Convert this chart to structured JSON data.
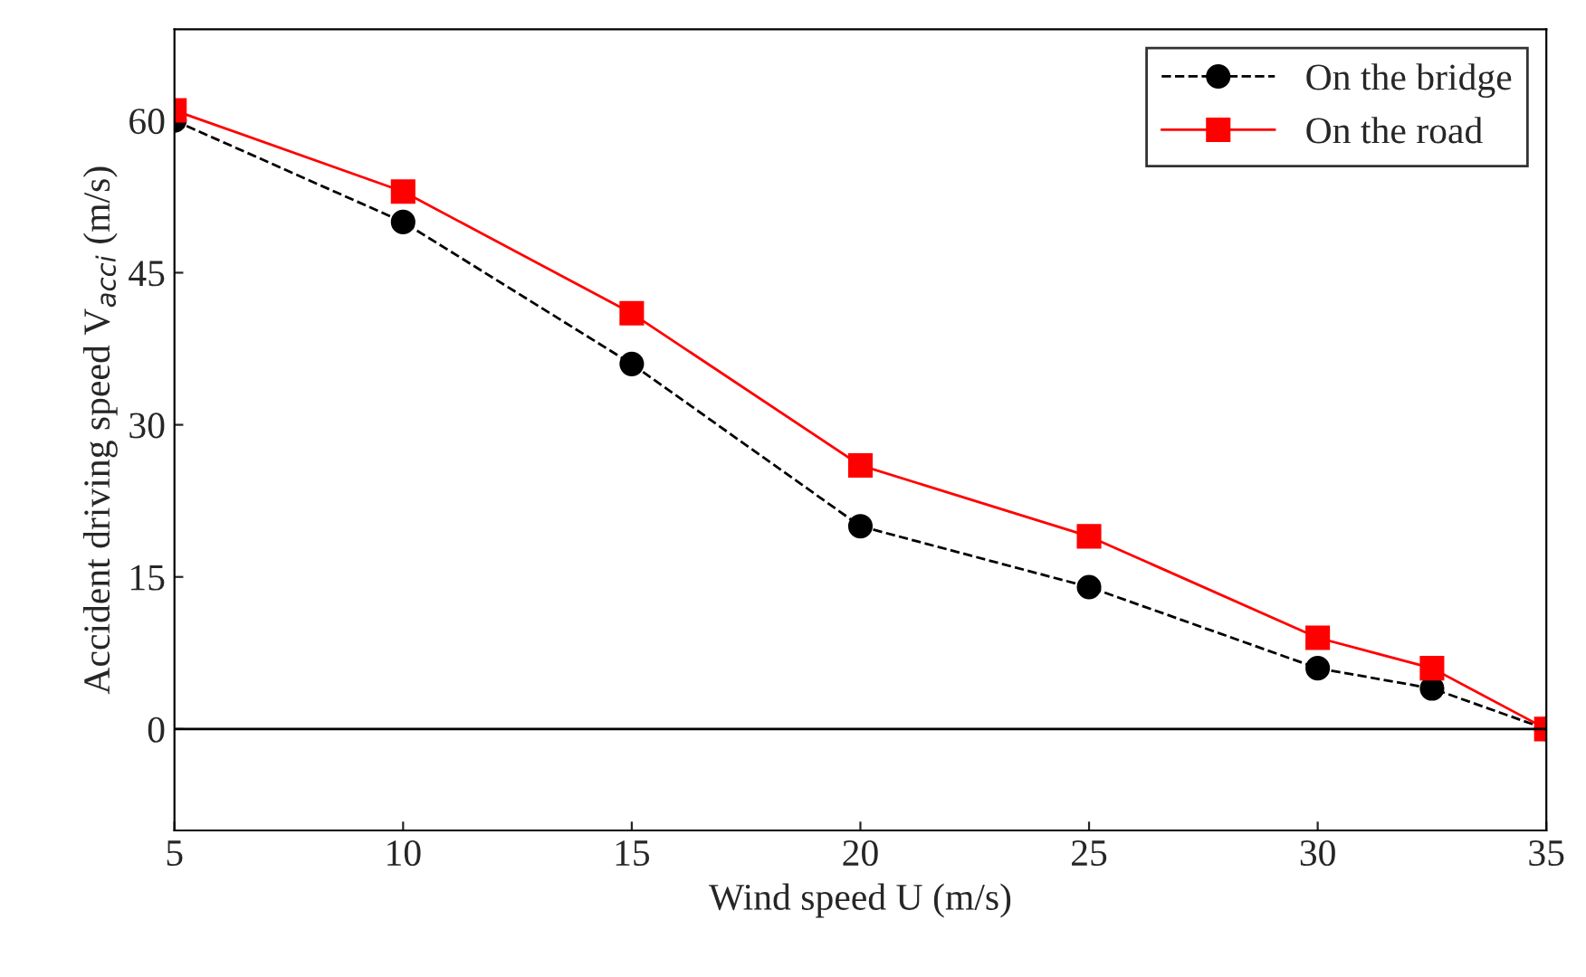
{
  "chart_data": {
    "type": "line",
    "xlabel": "Wind speed U (m/s)",
    "ylabel": "Accident driving speed V$_{acci}$ (m/s)",
    "x": [
      5,
      10,
      15,
      20,
      25,
      30,
      32.5,
      35
    ],
    "series": [
      {
        "name": "On the bridge",
        "color": "#000000",
        "marker": "circle",
        "line_style": "dashed",
        "values": [
          60,
          50,
          36,
          20,
          14,
          6,
          4,
          0
        ]
      },
      {
        "name": "On the road",
        "color": "#ff0000",
        "marker": "square",
        "line_style": "solid",
        "values": [
          61,
          53,
          41,
          26,
          19,
          9,
          6,
          0
        ]
      }
    ],
    "xlim": [
      5,
      35
    ],
    "xticks": [
      5,
      10,
      15,
      20,
      25,
      30,
      35
    ],
    "ylim": [
      -10,
      69
    ],
    "yticks": [
      0,
      15,
      30,
      45,
      60
    ],
    "ref_lines": [
      {
        "axis": "y",
        "value": 0,
        "color": "#000000",
        "line_style": "solid"
      }
    ],
    "grid": false,
    "legend": "top right"
  }
}
